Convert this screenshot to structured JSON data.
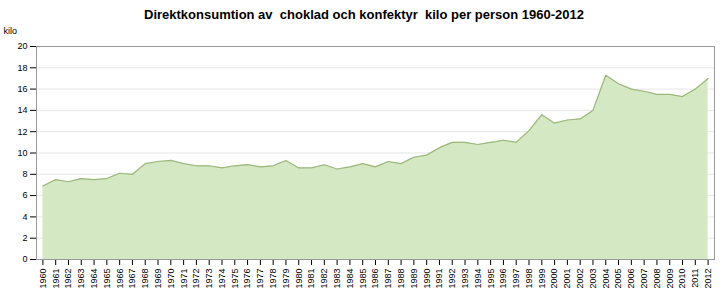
{
  "chart_data": {
    "type": "area",
    "title": "Direktkonsumtion av  choklad och konfektyr  kilo per person 1960-2012",
    "ylabel": "kilo",
    "x": [
      1960,
      1961,
      1962,
      1963,
      1964,
      1965,
      1966,
      1967,
      1968,
      1969,
      1970,
      1971,
      1972,
      1973,
      1974,
      1975,
      1976,
      1977,
      1978,
      1979,
      1980,
      1981,
      1982,
      1983,
      1984,
      1985,
      1986,
      1987,
      1988,
      1989,
      1990,
      1991,
      1992,
      1993,
      1994,
      1995,
      1996,
      1997,
      1998,
      1999,
      2000,
      2001,
      2002,
      2003,
      2004,
      2005,
      2006,
      2007,
      2008,
      2009,
      2010,
      2011,
      2012
    ],
    "series": [
      {
        "type": "area",
        "color": "#d5e8c4",
        "values": [
          6.9,
          7.5,
          7.3,
          7.6,
          7.5,
          7.6,
          8.1,
          8.0,
          9.0,
          9.2,
          9.3,
          9.0,
          8.8,
          8.8,
          8.6,
          8.8,
          8.9,
          8.7,
          8.8,
          9.3,
          8.6,
          8.6,
          8.9,
          8.5,
          8.7,
          9.0,
          8.7,
          9.2,
          9.0,
          9.6,
          9.8,
          10.5,
          11.0,
          11.0,
          10.8,
          11.0,
          11.2,
          11.0,
          12.1,
          13.6,
          12.8,
          13.1,
          13.2,
          14.0,
          17.3,
          16.5,
          16.0,
          15.8,
          15.5,
          15.5,
          15.3,
          16.0,
          17.0
        ]
      },
      {
        "type": "line",
        "color": "#9ab87a",
        "values": [
          6.9,
          7.5,
          7.3,
          7.6,
          7.5,
          7.6,
          8.1,
          8.0,
          9.0,
          9.2,
          9.3,
          9.0,
          8.8,
          8.8,
          8.6,
          8.8,
          8.9,
          8.7,
          8.8,
          9.3,
          8.6,
          8.6,
          8.9,
          8.5,
          8.7,
          9.0,
          8.7,
          9.2,
          9.0,
          9.6,
          9.8,
          10.5,
          11.0,
          11.0,
          10.8,
          11.0,
          11.2,
          11.0,
          12.1,
          13.6,
          12.8,
          13.1,
          13.2,
          14.0,
          17.3,
          16.5,
          16.0,
          15.8,
          15.5,
          15.5,
          15.3,
          16.0,
          17.0
        ]
      }
    ],
    "xlim": [
      1959.5,
      2012.5
    ],
    "xticks": [
      1960,
      1961,
      1962,
      1963,
      1964,
      1965,
      1966,
      1967,
      1968,
      1969,
      1970,
      1971,
      1972,
      1973,
      1974,
      1975,
      1976,
      1977,
      1978,
      1979,
      1980,
      1981,
      1982,
      1983,
      1984,
      1985,
      1986,
      1987,
      1988,
      1989,
      1990,
      1991,
      1992,
      1993,
      1994,
      1995,
      1996,
      1997,
      1998,
      1999,
      2000,
      2001,
      2002,
      2003,
      2004,
      2005,
      2006,
      2007,
      2008,
      2009,
      2010,
      2011,
      2012
    ],
    "ylim": [
      0,
      20
    ],
    "yticks": [
      0,
      2,
      4,
      6,
      8,
      10,
      12,
      14,
      16,
      18,
      20
    ],
    "grid": true
  }
}
